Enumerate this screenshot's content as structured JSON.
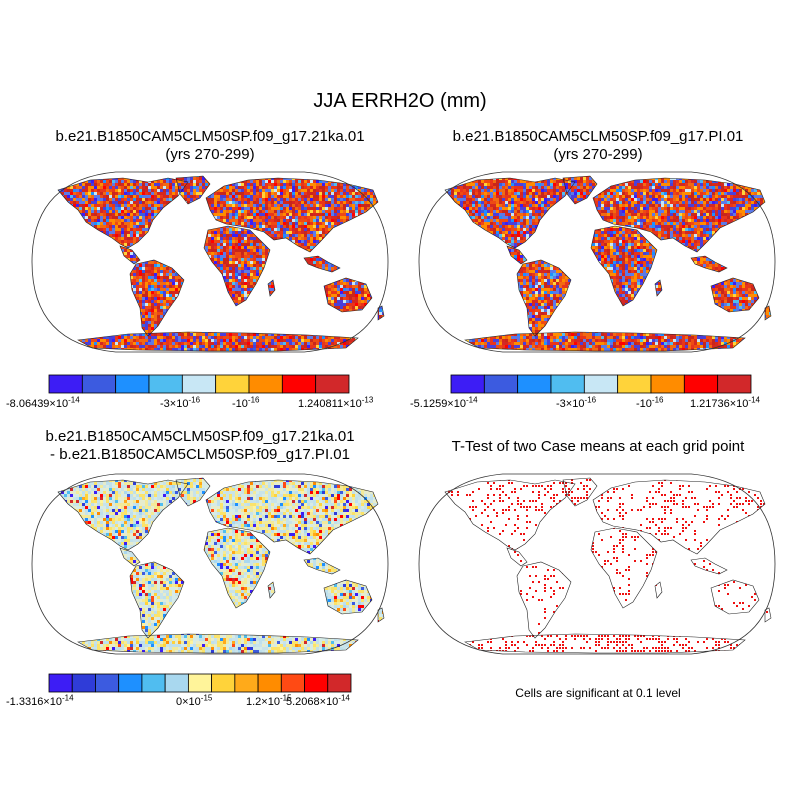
{
  "figure": {
    "title": "JJA ERRH2O (mm)"
  },
  "panels": {
    "top_left": {
      "title_line1": "b.e21.B1850CAM5CLM50SP.f09_g17.21ka.01",
      "title_line2": "(yrs 270-299)",
      "palette": [
        "#3d1df5",
        "#3c5be0",
        "#1e90ff",
        "#50bdf0",
        "#c8e7f5",
        "#ffd33a",
        "#ff8c00",
        "#ff0000",
        "#d2282a"
      ],
      "land_fill": [
        "#e8351b",
        "#f26a12",
        "#d4281f",
        "#ff8c00",
        "#c8261c",
        "#ee4a14",
        "#4b3fd9",
        "#5c7ae8"
      ],
      "colorbar_labels": [
        {
          "mantissa": "-8.06439",
          "times": "×",
          "base": "10",
          "exp": "-14"
        },
        {
          "mantissa": "-3",
          "times": "×",
          "base": "10",
          "exp": "-16"
        },
        {
          "mantissa": "-10",
          "exp": "-16"
        },
        {
          "mantissa": "1.240811",
          "times": "×",
          "base": "10",
          "exp": "-13"
        }
      ]
    },
    "top_right": {
      "title_line1": "b.e21.B1850CAM5CLM50SP.f09_g17.PI.01",
      "title_line2": "(yrs 270-299)",
      "palette": [
        "#3d1df5",
        "#3c5be0",
        "#1e90ff",
        "#50bdf0",
        "#c8e7f5",
        "#ffd33a",
        "#ff8c00",
        "#ff0000",
        "#d2282a"
      ],
      "land_fill": [
        "#e8351b",
        "#f26a12",
        "#d4281f",
        "#ff8c00",
        "#c8261c",
        "#ee4a14",
        "#4b3fd9",
        "#5c7ae8"
      ],
      "colorbar_labels": [
        {
          "mantissa": "-5.1259",
          "times": "×",
          "base": "10",
          "exp": "-14"
        },
        {
          "mantissa": "-3",
          "times": "×",
          "base": "10",
          "exp": "-16"
        },
        {
          "mantissa": "-10",
          "exp": "-16"
        },
        {
          "mantissa": "1.21736",
          "times": "×",
          "base": "10",
          "exp": "-14"
        }
      ]
    },
    "bottom_left": {
      "title_line1": "b.e21.B1850CAM5CLM50SP.f09_g17.21ka.01",
      "title_line2": "- b.e21.B1850CAM5CLM50SP.f09_g17.PI.01",
      "palette": [
        "#3d1df5",
        "#2f3cd8",
        "#3c5be0",
        "#1e90ff",
        "#50bdf0",
        "#a9d8ef",
        "#fff49a",
        "#ffd33a",
        "#ffaa1a",
        "#ff8c00",
        "#ff4a14",
        "#ff0000",
        "#d2282a"
      ],
      "land_fill": [
        "#c8e3ea",
        "#d6ebe6",
        "#f3ea9a",
        "#bfe0ec",
        "#e6eccd",
        "#fbe36a"
      ],
      "colorbar_labels": [
        {
          "mantissa": "-1.3316",
          "times": "×",
          "base": "10",
          "exp": "-14"
        },
        {
          "mantissa": "0",
          "times": "×",
          "base": "10",
          "exp": "-15"
        },
        {
          "mantissa": "1.2",
          "times": "×",
          "base": "10",
          "exp": "-15"
        },
        {
          "mantissa": "5.2068",
          "times": "×",
          "base": "10",
          "exp": "-14"
        }
      ]
    },
    "bottom_right": {
      "title": "T-Test of two Case means at each grid point",
      "dot_color": "#ee1111",
      "footnote": "Cells are significant at 0.1 level"
    }
  }
}
